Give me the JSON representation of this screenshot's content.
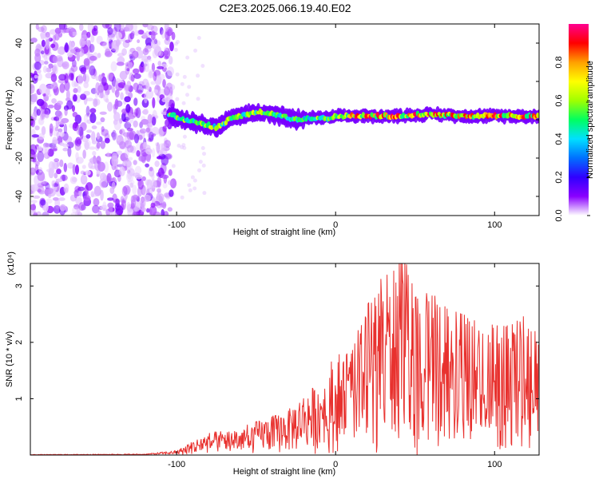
{
  "title": "C2E3.2025.066.19.40.E02",
  "chart_data": [
    {
      "type": "heatmap",
      "title": "C2E3.2025.066.19.40.E02",
      "xlabel": "Height of straight line (km)",
      "ylabel": "Frequency (Hz)",
      "xlim": [
        -192,
        128
      ],
      "ylim": [
        -50,
        50
      ],
      "xticks": [
        -100,
        0,
        100
      ],
      "yticks": [
        -40,
        -20,
        0,
        20,
        40
      ],
      "colorbar": {
        "label": "Normalized spectral amplitude",
        "range": [
          0,
          1
        ],
        "ticks": [
          "0.0",
          "0.2",
          "0.4",
          "0.6",
          "0.8"
        ],
        "colormap": [
          "#ffffff",
          "#8a00ff",
          "#3000ff",
          "#0070ff",
          "#00e0ff",
          "#00ff60",
          "#a0ff00",
          "#ffff00",
          "#ffa000",
          "#ff0000",
          "#ff0090"
        ]
      },
      "noise_region": {
        "x_from": -192,
        "x_to": -102,
        "y_from": -50,
        "y_to": 50
      },
      "signal_ridge": {
        "x": [
          -105,
          -95,
          -85,
          -75,
          -65,
          -55,
          -45,
          -35,
          -25,
          -15,
          -5,
          5,
          20,
          40,
          60,
          80,
          100,
          128
        ],
        "freq_hz": [
          3,
          0,
          -2,
          -4,
          1,
          3,
          4,
          2,
          0,
          1,
          1,
          2,
          2,
          2,
          3,
          2,
          2,
          2
        ]
      }
    },
    {
      "type": "line",
      "xlabel": "Height of straight line (km)",
      "ylabel": "SNR (10 * v/v)",
      "multiplier": "(x10⁴)",
      "xlim": [
        -192,
        128
      ],
      "ylim": [
        0,
        3.4
      ],
      "xticks": [
        -100,
        0,
        100
      ],
      "yticks": [
        1,
        2,
        3
      ],
      "series": [
        {
          "name": "SNR",
          "color": "#e8312e",
          "envelope_x": [
            -192,
            -120,
            -100,
            -90,
            -80,
            -70,
            -60,
            -50,
            -40,
            -30,
            -20,
            -10,
            -5,
            0,
            5,
            10,
            15,
            20,
            30,
            40,
            45,
            50,
            60,
            70,
            80,
            90,
            100,
            110,
            120,
            128
          ],
          "envelope_max": [
            0.01,
            0.02,
            0.08,
            0.25,
            0.4,
            0.45,
            0.5,
            0.6,
            0.7,
            0.8,
            1.1,
            1.3,
            1.6,
            1.85,
            1.8,
            1.8,
            2.3,
            2.7,
            3.2,
            3.4,
            3.45,
            2.8,
            2.9,
            2.6,
            2.5,
            2.4,
            2.3,
            2.3,
            2.5,
            2.6
          ]
        }
      ]
    }
  ]
}
